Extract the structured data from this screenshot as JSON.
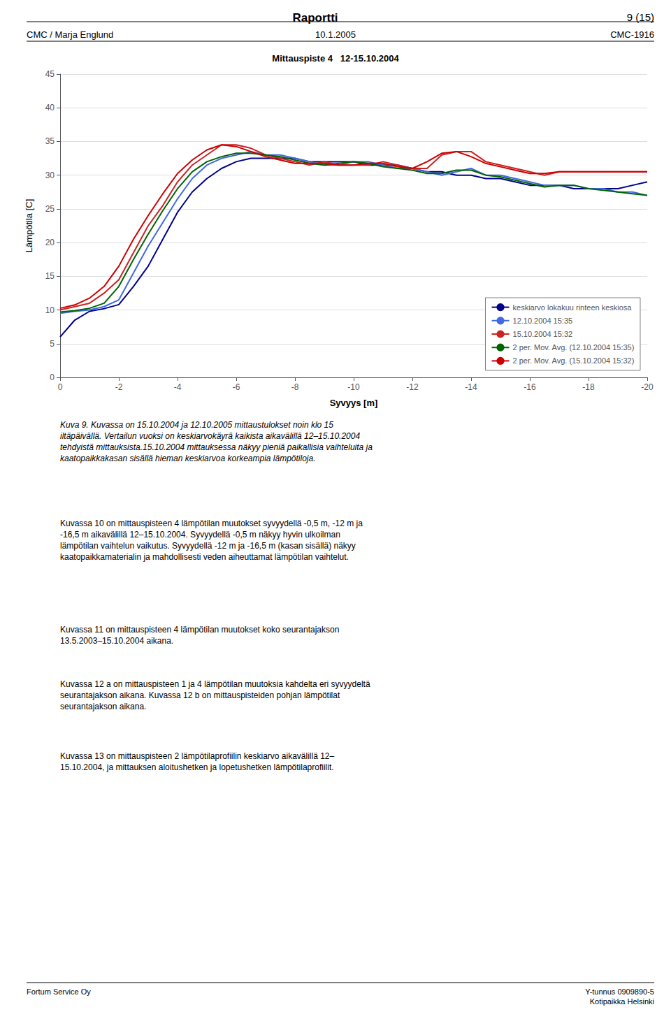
{
  "chart_data": {
    "type": "line",
    "title": "Mittauspiste 4   12-15.10.2004",
    "xlabel": "Syvyys [m]",
    "ylabel": "Lämpötila [C]",
    "xlim": [
      0,
      -20
    ],
    "ylim": [
      0,
      45
    ],
    "xticks": [
      0,
      -2,
      -4,
      -6,
      -8,
      -10,
      -12,
      -14,
      -16,
      -18,
      -20
    ],
    "yticks": [
      0,
      5,
      10,
      15,
      20,
      25,
      30,
      35,
      40,
      45
    ],
    "grid": true,
    "legend": "lower right",
    "x": [
      0,
      -0.5,
      -1.0,
      -1.5,
      -2.0,
      -2.5,
      -3.0,
      -3.5,
      -4.0,
      -4.5,
      -5.0,
      -5.5,
      -6.0,
      -6.5,
      -7.0,
      -7.5,
      -8.0,
      -8.5,
      -9.0,
      -9.5,
      -10.0,
      -10.5,
      -11.0,
      -11.5,
      -12.0,
      -12.5,
      -13.0,
      -13.5,
      -14.0,
      -14.5,
      -15.0,
      -15.5,
      -16.0,
      -16.5,
      -17.0,
      -17.5,
      -18.0,
      -18.5,
      -19.0,
      -19.5,
      -20.0
    ],
    "series": [
      {
        "name": "keskiarvo lokakuu rinteen keskiosa",
        "color": "#00008B",
        "values": [
          6.0,
          8.5,
          9.8,
          10.2,
          10.8,
          13.5,
          16.5,
          20.5,
          24.5,
          27.5,
          29.5,
          31.0,
          32.0,
          32.5,
          32.5,
          32.5,
          32.5,
          32.0,
          32.0,
          32.0,
          32.0,
          31.5,
          31.5,
          31.5,
          31.0,
          30.5,
          30.5,
          30.0,
          30.0,
          29.5,
          29.5,
          29.0,
          28.5,
          28.5,
          28.5,
          28.0,
          28.0,
          28.0,
          28.0,
          28.5,
          29.0
        ]
      },
      {
        "name": "12.10.2004 15:35",
        "color": "#4169E1",
        "values": [
          9.5,
          9.8,
          10.0,
          10.5,
          11.5,
          15.5,
          19.5,
          23.0,
          26.5,
          29.5,
          31.5,
          32.5,
          33.0,
          33.5,
          33.0,
          33.0,
          32.5,
          32.0,
          31.5,
          31.5,
          32.0,
          32.0,
          31.5,
          31.0,
          31.0,
          30.5,
          30.0,
          30.5,
          31.0,
          30.0,
          30.0,
          29.5,
          29.0,
          28.5,
          28.5,
          28.5,
          28.0,
          28.0,
          27.5,
          27.5,
          27.0
        ]
      },
      {
        "name": "15.10.2004 15:32",
        "color": "#CC2222",
        "values": [
          10.0,
          10.5,
          11.0,
          12.5,
          14.5,
          18.5,
          22.5,
          25.5,
          29.0,
          31.5,
          33.0,
          34.5,
          34.5,
          34.0,
          33.0,
          32.5,
          32.0,
          31.5,
          32.0,
          31.5,
          31.5,
          31.5,
          32.0,
          31.5,
          31.0,
          31.0,
          33.0,
          33.5,
          33.5,
          32.0,
          31.5,
          31.0,
          30.5,
          30.0,
          30.5,
          30.5,
          30.5,
          30.5,
          30.5,
          30.5,
          30.5
        ]
      },
      {
        "name": "2 per. Mov. Avg. (12.10.2004 15:35)",
        "color": "#006400",
        "values": [
          9.7,
          9.9,
          10.25,
          11.0,
          13.5,
          17.5,
          21.25,
          24.75,
          28.0,
          30.5,
          32.0,
          32.75,
          33.25,
          33.25,
          33.0,
          32.75,
          32.25,
          31.75,
          31.5,
          31.75,
          32.0,
          31.75,
          31.25,
          31.0,
          30.75,
          30.25,
          30.25,
          30.75,
          30.75,
          30.0,
          29.75,
          29.25,
          28.75,
          28.25,
          28.5,
          28.5,
          28.0,
          27.75,
          27.5,
          27.25,
          27.0
        ]
      },
      {
        "name": "2 per. Mov. Avg. (15.10.2004 15:32)",
        "color": "#CC0000",
        "values": [
          10.25,
          10.75,
          11.75,
          13.5,
          16.5,
          20.5,
          24.0,
          27.25,
          30.25,
          32.25,
          33.75,
          34.5,
          34.25,
          33.5,
          32.75,
          32.25,
          31.75,
          31.75,
          31.75,
          31.5,
          31.5,
          31.75,
          31.75,
          31.25,
          31.0,
          32.0,
          33.25,
          33.5,
          32.75,
          31.75,
          31.25,
          30.75,
          30.25,
          30.25,
          30.5,
          30.5,
          30.5,
          30.5,
          30.5,
          30.5,
          30.5
        ]
      }
    ]
  },
  "page_header": {
    "title": "Raportti",
    "number": "9 (15)",
    "left": "CMC / Marja Englund",
    "center": "10.1.2005",
    "right": "CMC-1916"
  },
  "body": [
    "Kuva 9. Kuvassa on 15.10.2004 ja 12.10.2005 mittaustulokset noin klo 15\niltäpäivällä. Vertailun vuoksi on keskiarvokäyrä kaikista aikavälillä 12–15.10.2004\ntehdyistä mittauksista.15.10.2004 mittauksessa näkyy pieniä paikallisia vaihteluita ja\nkaatopaikkakasan sisällä hieman keskiarvoa korkeampia lämpötiloja.",
    "Kuvassa 10 on mittauspisteen 4 lämpötilan muutokset syvyydellä -0,5 m, -12 m ja\n-16,5 m aikavälillä 12–15.10.2004. Syvyydellä -0,5 m näkyy hyvin ulkoilman\nlämpötilan vaihtelun vaikutus. Syvyydellä -12 m ja -16,5 m (kasan sisällä) näkyy\nkaatopaikkamaterialin ja mahdollisesti veden aiheuttamat lämpötilan vaihtelut.",
    "Kuvassa 11 on mittauspisteen 4 lämpötilan muutokset koko seurantajakson\n13.5.2003–15.10.2004 aikana.",
    "Kuvassa 12 a on mittauspisteen 1 ja 4 lämpötilan muutoksia kahdelta eri syvyydeltä\nseurantajakson aikana. Kuvassa 12 b on mittauspisteiden pohjan lämpötilat\nseurantajakson aikana.",
    "Kuvassa 13 on mittauspisteen 2 lämpötilaprofiilin keskiarvo aikavälillä 12–\n15.10.2004, ja mittauksen aloitushetken ja lopetushetken lämpötilaprofiilit."
  ],
  "footer": {
    "left": "Fortum Service Oy",
    "right": "Y-tunnus 0909890-5\nKotipaikka Helsinki"
  }
}
